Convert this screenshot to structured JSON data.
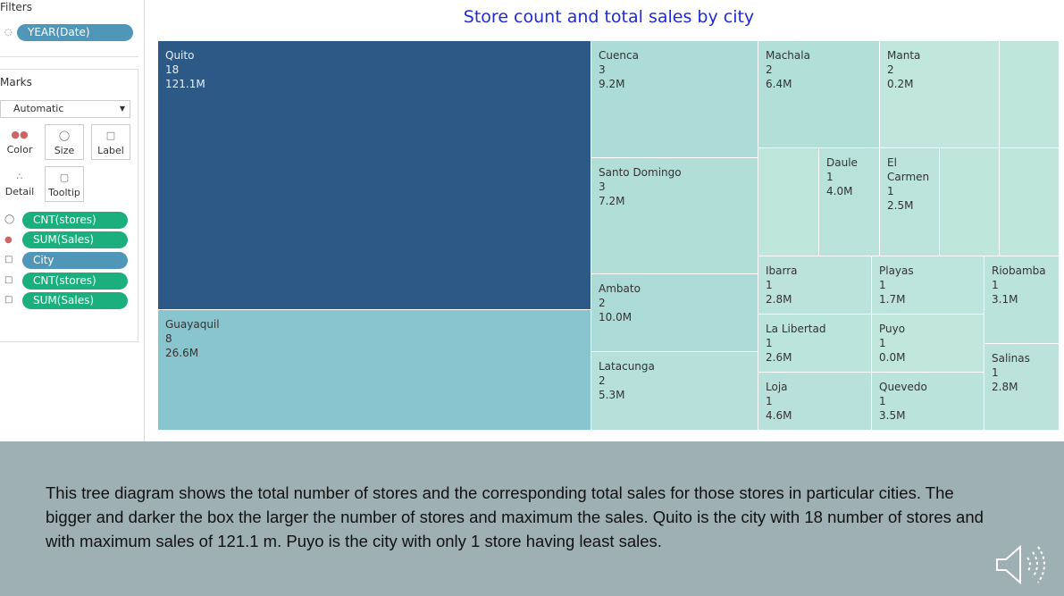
{
  "sidebar": {
    "filters_title": "Filters",
    "filter_pill": "YEAR(Date)",
    "marks_title": "Marks",
    "mark_type": "Automatic",
    "buttons": [
      "Color",
      "Size",
      "Label",
      "Detail",
      "Tooltip"
    ],
    "pills": [
      "CNT(stores)",
      "SUM(Sales)",
      "City",
      "CNT(stores)",
      "SUM(Sales)"
    ]
  },
  "chart_data": {
    "type": "treemap",
    "title": "Store count and total sales by city",
    "categories": [
      "Quito",
      "Guayaquil",
      "Cuenca",
      "Santo Domingo",
      "Ambato",
      "Latacunga",
      "Machala",
      "Manta",
      "Daule",
      "El Carmen",
      "Ibarra",
      "Playas",
      "Riobamba",
      "La Libertad",
      "Puyo",
      "Salinas",
      "Loja",
      "Quevedo"
    ],
    "values": [
      18,
      8,
      3,
      3,
      2,
      2,
      2,
      2,
      1,
      1,
      1,
      1,
      1,
      1,
      1,
      1,
      1,
      1
    ],
    "sales": [
      121.1,
      26.6,
      9.2,
      7.2,
      10.0,
      5.3,
      6.4,
      0.2,
      4.0,
      2.5,
      2.8,
      1.7,
      3.1,
      2.6,
      0.0,
      2.8,
      4.6,
      3.5
    ],
    "sales_labels": [
      "121.1M",
      "26.6M",
      "9.2M",
      "7.2M",
      "10.0M",
      "5.3M",
      "6.4M",
      "0.2M",
      "4.0M",
      "2.5M",
      "2.8M",
      "1.7M",
      "3.1M",
      "2.6M",
      "0.0M",
      "2.8M",
      "4.6M",
      "3.5M"
    ]
  },
  "caption": "This tree diagram shows the total number of stores and the corresponding total sales for those stores in particular cities. The bigger and darker the box the larger the number of stores and maximum the sales. Quito is the city with 18 number of stores and with maximum sales of 121.1 m. Puyo is the city with only 1 store having least sales."
}
